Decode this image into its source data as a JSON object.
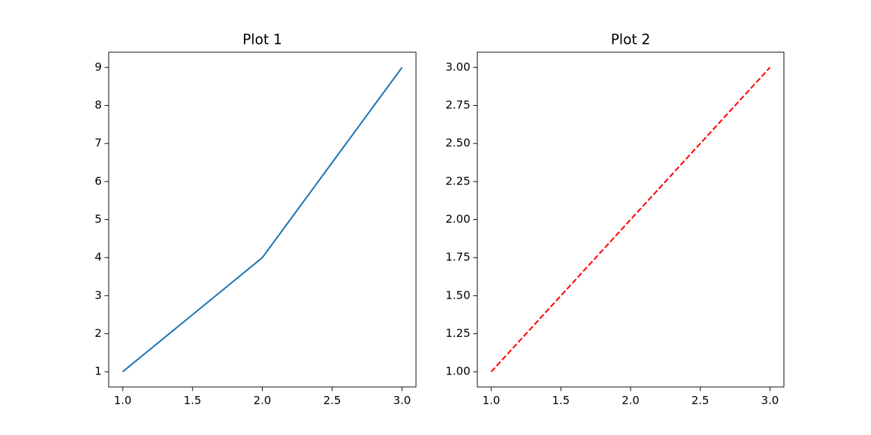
{
  "chart_data": [
    {
      "type": "line",
      "title": "Plot 1",
      "x": [
        1,
        2,
        3
      ],
      "values": [
        1,
        4,
        9
      ],
      "color": "#1f77b4",
      "linestyle": "solid",
      "xlim": [
        0.9,
        3.1
      ],
      "xticks": [
        {
          "value": 1,
          "label": "1.0"
        },
        {
          "value": 1.5,
          "label": "1.5"
        },
        {
          "value": 2,
          "label": "2.0"
        },
        {
          "value": 2.5,
          "label": "2.5"
        },
        {
          "value": 3,
          "label": "3.0"
        }
      ],
      "ylim": [
        0.6,
        9.4
      ],
      "yticks": [
        1,
        2,
        3,
        4,
        5,
        6,
        7,
        8,
        9
      ]
    },
    {
      "type": "line",
      "title": "Plot 2",
      "x": [
        1,
        2,
        3
      ],
      "values": [
        1,
        2,
        3
      ],
      "color": "#ff0000",
      "linestyle": "dashed",
      "xlim": [
        0.9,
        3.1
      ],
      "xticks": [
        {
          "value": 1,
          "label": "1.0"
        },
        {
          "value": 1.5,
          "label": "1.5"
        },
        {
          "value": 2,
          "label": "2.0"
        },
        {
          "value": 2.5,
          "label": "2.5"
        },
        {
          "value": 3,
          "label": "3.0"
        }
      ],
      "ylim": [
        0.9,
        3.1
      ],
      "yticks": [
        {
          "value": 1,
          "label": "1.00"
        },
        {
          "value": 1.25,
          "label": "1.25"
        },
        {
          "value": 1.5,
          "label": "1.50"
        },
        {
          "value": 1.75,
          "label": "1.75"
        },
        {
          "value": 2,
          "label": "2.00"
        },
        {
          "value": 2.25,
          "label": "2.25"
        },
        {
          "value": 2.5,
          "label": "2.50"
        },
        {
          "value": 2.75,
          "label": "2.75"
        },
        {
          "value": 3,
          "label": "3.00"
        }
      ]
    }
  ]
}
